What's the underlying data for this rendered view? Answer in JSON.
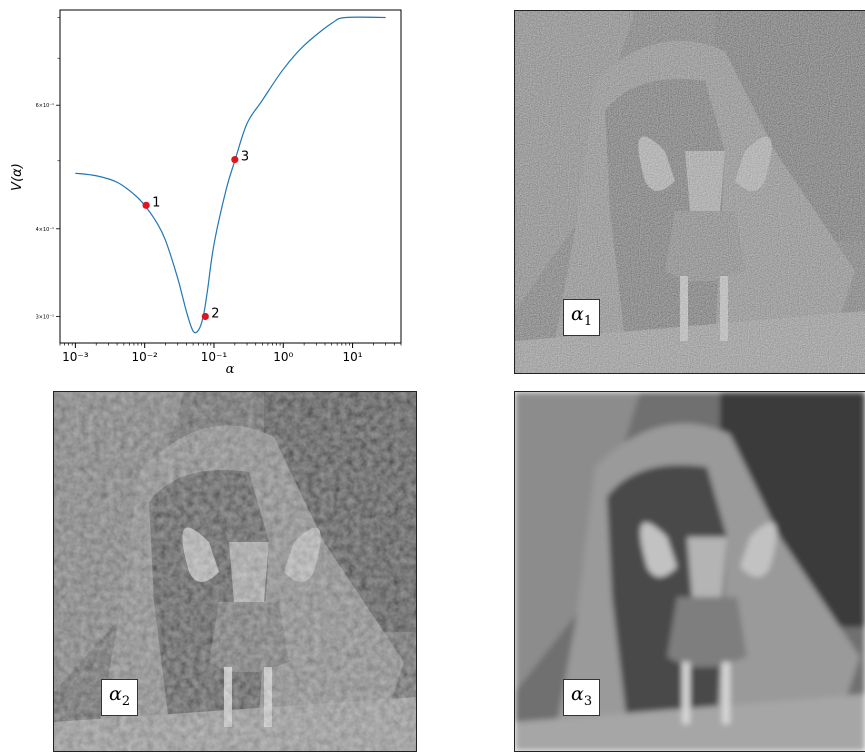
{
  "chart_data": {
    "type": "line",
    "title": "",
    "xlabel": "α",
    "ylabel": "V(α)",
    "xscale": "log",
    "yscale": "log",
    "xlim": [
      0.0006,
      50
    ],
    "ylim": [
      0.275,
      0.82
    ],
    "xticks": [
      {
        "value": 0.001,
        "label": "10⁻³"
      },
      {
        "value": 0.01,
        "label": "10⁻²"
      },
      {
        "value": 0.1,
        "label": "10⁻¹"
      },
      {
        "value": 1,
        "label": "10⁰"
      },
      {
        "value": 10,
        "label": "10¹"
      }
    ],
    "yticks": [
      {
        "value": 0.3,
        "label": "3×10⁻¹"
      },
      {
        "value": 0.4,
        "label": "4×10⁻¹"
      },
      {
        "value": 0.6,
        "label": "6×10⁻¹"
      }
    ],
    "grid": false,
    "line_color": "#1f77b4",
    "marker_color": "#e0141e",
    "series": [
      {
        "x": [
          0.001,
          0.002,
          0.004,
          0.007,
          0.01,
          0.015,
          0.02,
          0.03,
          0.04,
          0.05,
          0.06,
          0.07,
          0.08,
          0.1,
          0.15,
          0.2,
          0.3,
          0.5,
          1,
          2,
          5,
          8,
          30
        ],
        "values": [
          0.48,
          0.476,
          0.466,
          0.448,
          0.432,
          0.408,
          0.385,
          0.34,
          0.305,
          0.286,
          0.287,
          0.3,
          0.325,
          0.38,
          0.455,
          0.5,
          0.565,
          0.61,
          0.675,
          0.73,
          0.785,
          0.8,
          0.8
        ]
      }
    ],
    "points": [
      {
        "label": "1",
        "x": 0.0105,
        "y": 0.432
      },
      {
        "label": "2",
        "x": 0.075,
        "y": 0.3
      },
      {
        "label": "3",
        "x": 0.2,
        "y": 0.502
      }
    ]
  },
  "panels": [
    {
      "label_symbol": "α",
      "label_sub": "1",
      "style": "noisy"
    },
    {
      "label_symbol": "α",
      "label_sub": "2",
      "style": "medium"
    },
    {
      "label_symbol": "α",
      "label_sub": "3",
      "style": "smooth"
    }
  ]
}
